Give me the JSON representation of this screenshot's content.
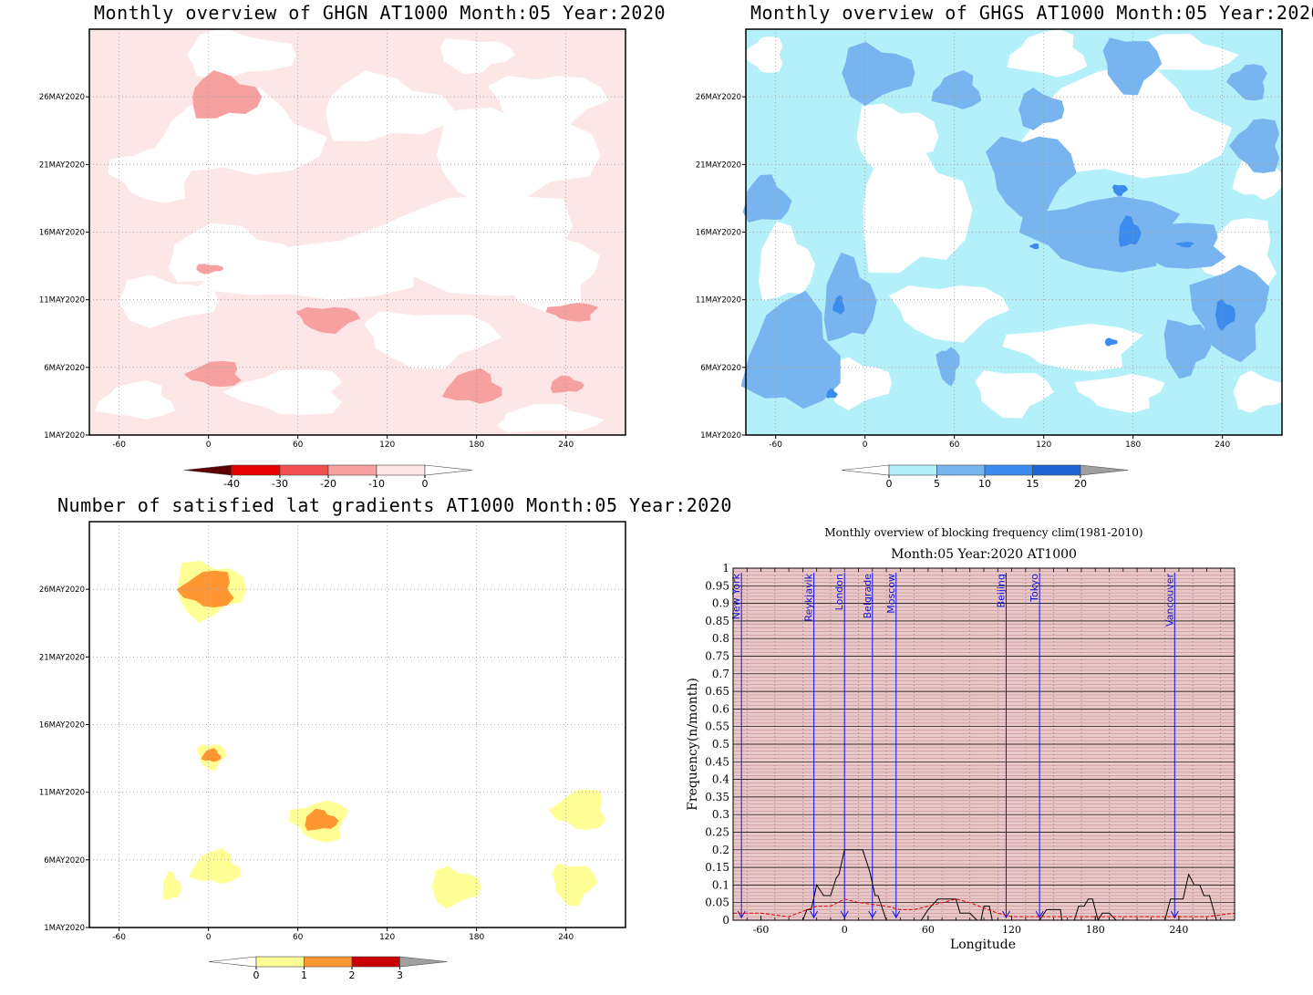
{
  "chart_data": [
    {
      "type": "heatmap",
      "title": "Monthly overview of GHGN AT1000 Month:05 Year:2020",
      "x_ticks": [
        "-60",
        "0",
        "60",
        "120",
        "180",
        "240"
      ],
      "y_ticks": [
        "1MAY2020",
        "6MAY2020",
        "11MAY2020",
        "16MAY2020",
        "21MAY2020",
        "26MAY2020"
      ],
      "xlim": [
        -80,
        280
      ],
      "colorbar": {
        "ticks": [
          "-40",
          "-30",
          "-20",
          "-10",
          "0"
        ],
        "colors": [
          "#5c0000",
          "#e80000",
          "#f05050",
          "#f7a0a0",
          "#fde6e6",
          "#ffffff"
        ]
      },
      "background": "#fde6e6",
      "patches": [
        {
          "lon": 10,
          "day": 26.0,
          "level": "-20"
        },
        {
          "lon": 0,
          "day": 13.3,
          "level": "-20"
        },
        {
          "lon": 80,
          "day": 9.6,
          "level": "-20"
        },
        {
          "lon": 245,
          "day": 10.1,
          "level": "-20"
        },
        {
          "lon": 5,
          "day": 5.5,
          "level": "-20"
        },
        {
          "lon": 178,
          "day": 4.5,
          "level": "-20"
        },
        {
          "lon": 240,
          "day": 4.7,
          "level": "-20"
        }
      ]
    },
    {
      "type": "heatmap",
      "title": "Monthly overview of GHGS AT1000 Month:05 Year:2020",
      "x_ticks": [
        "-60",
        "0",
        "60",
        "120",
        "180",
        "240"
      ],
      "y_ticks": [
        "1MAY2020",
        "6MAY2020",
        "11MAY2020",
        "16MAY2020",
        "21MAY2020",
        "26MAY2020"
      ],
      "xlim": [
        -80,
        280
      ],
      "colorbar": {
        "ticks": [
          "0",
          "5",
          "10",
          "15",
          "20"
        ],
        "colors": [
          "#ffffff",
          "#b4f0fa",
          "#78b4f0",
          "#3c8cf0",
          "#1e64d2",
          "#a0a0a0"
        ]
      },
      "background": "#b4f0fa"
    },
    {
      "type": "heatmap",
      "title": "Number of satisfied lat gradients AT1000 Month:05 Year:2020",
      "x_ticks": [
        "-60",
        "0",
        "60",
        "120",
        "180",
        "240"
      ],
      "y_ticks": [
        "1MAY2020",
        "6MAY2020",
        "11MAY2020",
        "16MAY2020",
        "21MAY2020",
        "26MAY2020"
      ],
      "xlim": [
        -80,
        280
      ],
      "colorbar": {
        "ticks": [
          "0",
          "1",
          "2",
          "3"
        ],
        "colors": [
          "#ffffff",
          "#ffff96",
          "#ff9632",
          "#c80000",
          "#a0a0a0"
        ]
      },
      "patches": [
        {
          "lon": 0,
          "day": 26.0,
          "value": 2
        },
        {
          "lon": 2,
          "day": 13.7,
          "value": 2
        },
        {
          "lon": 75,
          "day": 8.9,
          "value": 2
        },
        {
          "lon": 250,
          "day": 9.7,
          "value": 1
        },
        {
          "lon": 5,
          "day": 5.4,
          "value": 1
        },
        {
          "lon": -25,
          "day": 4.0,
          "value": 1
        },
        {
          "lon": 165,
          "day": 4.0,
          "value": 1
        },
        {
          "lon": 245,
          "day": 4.3,
          "value": 1
        }
      ]
    },
    {
      "type": "line",
      "title": "Monthly overview of blocking frequency clim(1981-2010)",
      "subtitle": "Month:05 Year:2020  AT1000",
      "xlabel": "Longitude",
      "ylabel": "Frequency(n/month)",
      "xlim": [
        -80,
        280
      ],
      "ylim": [
        0,
        1
      ],
      "x_ticks": [
        "-60",
        "0",
        "60",
        "120",
        "180",
        "240"
      ],
      "y_ticks": [
        "0",
        "0.05",
        "0.1",
        "0.15",
        "0.2",
        "0.25",
        "0.3",
        "0.35",
        "0.4",
        "0.45",
        "0.5",
        "0.55",
        "0.6",
        "0.65",
        "0.7",
        "0.75",
        "0.8",
        "0.85",
        "0.9",
        "0.95",
        "1"
      ],
      "cities": [
        {
          "name": "New York",
          "lon": -74
        },
        {
          "name": "Reykjavik",
          "lon": -22
        },
        {
          "name": "London",
          "lon": 0
        },
        {
          "name": "Belgrade",
          "lon": 20
        },
        {
          "name": "Moscow",
          "lon": 37
        },
        {
          "name": "Beijing",
          "lon": 116
        },
        {
          "name": "Tokyo",
          "lon": 140
        },
        {
          "name": "Vancouver",
          "lon": 237
        }
      ],
      "series": [
        {
          "color": "#000000",
          "x": [
            -80,
            -30,
            -27,
            -24,
            -20,
            -15,
            -10,
            -6,
            -4,
            0,
            3,
            10,
            13,
            18,
            22,
            24,
            30,
            40,
            55,
            60,
            67,
            72,
            76,
            80,
            83,
            87,
            90,
            95,
            98,
            100,
            104,
            106,
            140,
            145,
            155,
            156,
            165,
            168,
            172,
            175,
            178,
            182,
            185,
            190,
            195,
            230,
            234,
            236,
            243,
            247,
            251,
            255,
            258,
            262,
            267,
            271,
            280
          ],
          "y": [
            0,
            0,
            0.03,
            0.03,
            0.1,
            0.07,
            0.07,
            0.12,
            0.13,
            0.2,
            0.2,
            0.2,
            0.2,
            0.14,
            0.07,
            0.07,
            0,
            0,
            0,
            0.03,
            0.06,
            0.06,
            0.06,
            0.06,
            0.02,
            0.02,
            0.02,
            0,
            0,
            0.04,
            0.04,
            0,
            0,
            0.03,
            0.03,
            0,
            0,
            0.04,
            0.04,
            0.06,
            0.06,
            0,
            0.02,
            0.02,
            0,
            0,
            0.06,
            0.06,
            0.06,
            0.13,
            0.1,
            0.1,
            0.07,
            0.07,
            0,
            0,
            0
          ]
        },
        {
          "color": "#e00000",
          "dashed": true,
          "x": [
            -80,
            -60,
            -40,
            -20,
            -10,
            0,
            10,
            20,
            30,
            40,
            50,
            60,
            70,
            80,
            90,
            100,
            110,
            120,
            140,
            160,
            180,
            200,
            220,
            240,
            260,
            280
          ],
          "y": [
            0.02,
            0.02,
            0.01,
            0.04,
            0.04,
            0.06,
            0.05,
            0.045,
            0.04,
            0.03,
            0.03,
            0.04,
            0.05,
            0.06,
            0.05,
            0.035,
            0.02,
            0.01,
            0.01,
            0.01,
            0.01,
            0.01,
            0.01,
            0.01,
            0.01,
            0.02
          ]
        }
      ],
      "background": "#e8c8c8",
      "grid": true
    }
  ]
}
